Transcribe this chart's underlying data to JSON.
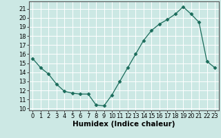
{
  "x": [
    0,
    1,
    2,
    3,
    4,
    5,
    6,
    7,
    8,
    9,
    10,
    11,
    12,
    13,
    14,
    15,
    16,
    17,
    18,
    19,
    20,
    21,
    22,
    23
  ],
  "y": [
    15.5,
    14.5,
    13.8,
    12.7,
    11.9,
    11.7,
    11.6,
    11.6,
    10.4,
    10.3,
    11.5,
    13.0,
    14.5,
    16.0,
    17.5,
    18.6,
    19.3,
    19.8,
    20.4,
    21.2,
    20.4,
    19.5,
    15.2,
    14.5
  ],
  "xlabel": "Humidex (Indice chaleur)",
  "ylim": [
    9.8,
    21.8
  ],
  "xlim": [
    -0.5,
    23.5
  ],
  "yticks": [
    10,
    11,
    12,
    13,
    14,
    15,
    16,
    17,
    18,
    19,
    20,
    21
  ],
  "xticks": [
    0,
    1,
    2,
    3,
    4,
    5,
    6,
    7,
    8,
    9,
    10,
    11,
    12,
    13,
    14,
    15,
    16,
    17,
    18,
    19,
    20,
    21,
    22,
    23
  ],
  "line_color": "#1a6b5a",
  "marker": "D",
  "marker_size": 2.5,
  "bg_color": "#cce8e4",
  "grid_color": "#ffffff",
  "xlabel_fontsize": 7.5,
  "tick_fontsize": 6.0
}
